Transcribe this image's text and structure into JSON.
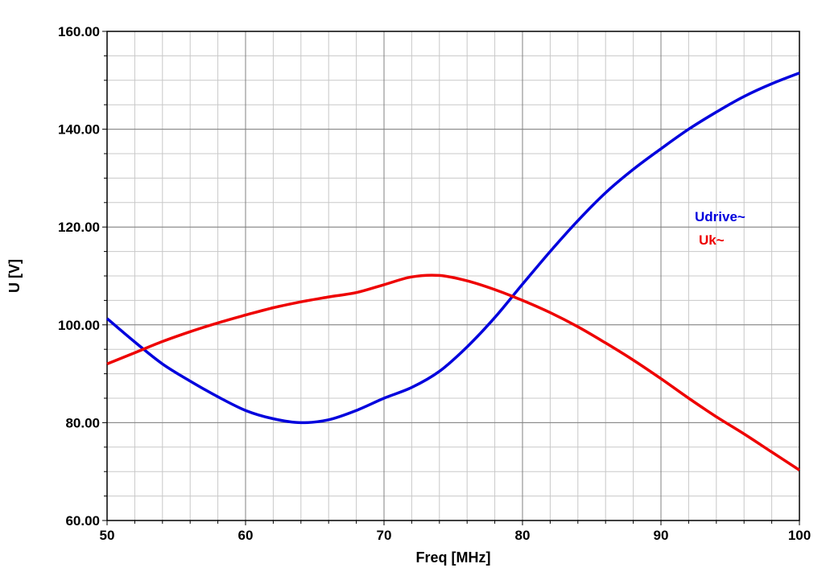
{
  "chart_data": {
    "type": "line",
    "xlabel": "Freq [MHz]",
    "ylabel": "U [V]",
    "xlim": [
      50,
      100
    ],
    "ylim": [
      60,
      160
    ],
    "x_ticks": [
      "50",
      "60",
      "70",
      "80",
      "90",
      "100"
    ],
    "y_ticks": [
      "60.00",
      "80.00",
      "100.00",
      "120.00",
      "140.00",
      "160.00"
    ],
    "grid": true,
    "legend_position": "right",
    "series": [
      {
        "name": "Udrive~",
        "color": "#0000dd",
        "x": [
          50,
          52,
          54,
          56,
          58,
          60,
          62,
          64,
          66,
          68,
          70,
          72,
          74,
          76,
          78,
          80,
          82,
          84,
          86,
          88,
          90,
          92,
          94,
          96,
          98,
          100
        ],
        "y": [
          101.3,
          96.5,
          92.0,
          88.5,
          85.3,
          82.5,
          80.8,
          80.0,
          80.6,
          82.5,
          85.0,
          87.2,
          90.5,
          95.5,
          101.5,
          108.3,
          115.0,
          121.3,
          127.0,
          131.8,
          136.0,
          140.0,
          143.5,
          146.7,
          149.3,
          151.5
        ]
      },
      {
        "name": "Uk~",
        "color": "#ee0000",
        "x": [
          50,
          52,
          54,
          56,
          58,
          60,
          62,
          64,
          66,
          68,
          70,
          72,
          74,
          76,
          78,
          80,
          82,
          84,
          86,
          88,
          90,
          92,
          94,
          96,
          98,
          100
        ],
        "y": [
          92.0,
          94.3,
          96.6,
          98.6,
          100.4,
          102.0,
          103.5,
          104.7,
          105.7,
          106.6,
          108.2,
          109.8,
          110.1,
          109.0,
          107.2,
          105.0,
          102.5,
          99.6,
          96.3,
          92.8,
          89.0,
          85.0,
          81.2,
          77.7,
          74.0,
          70.3
        ]
      }
    ]
  }
}
